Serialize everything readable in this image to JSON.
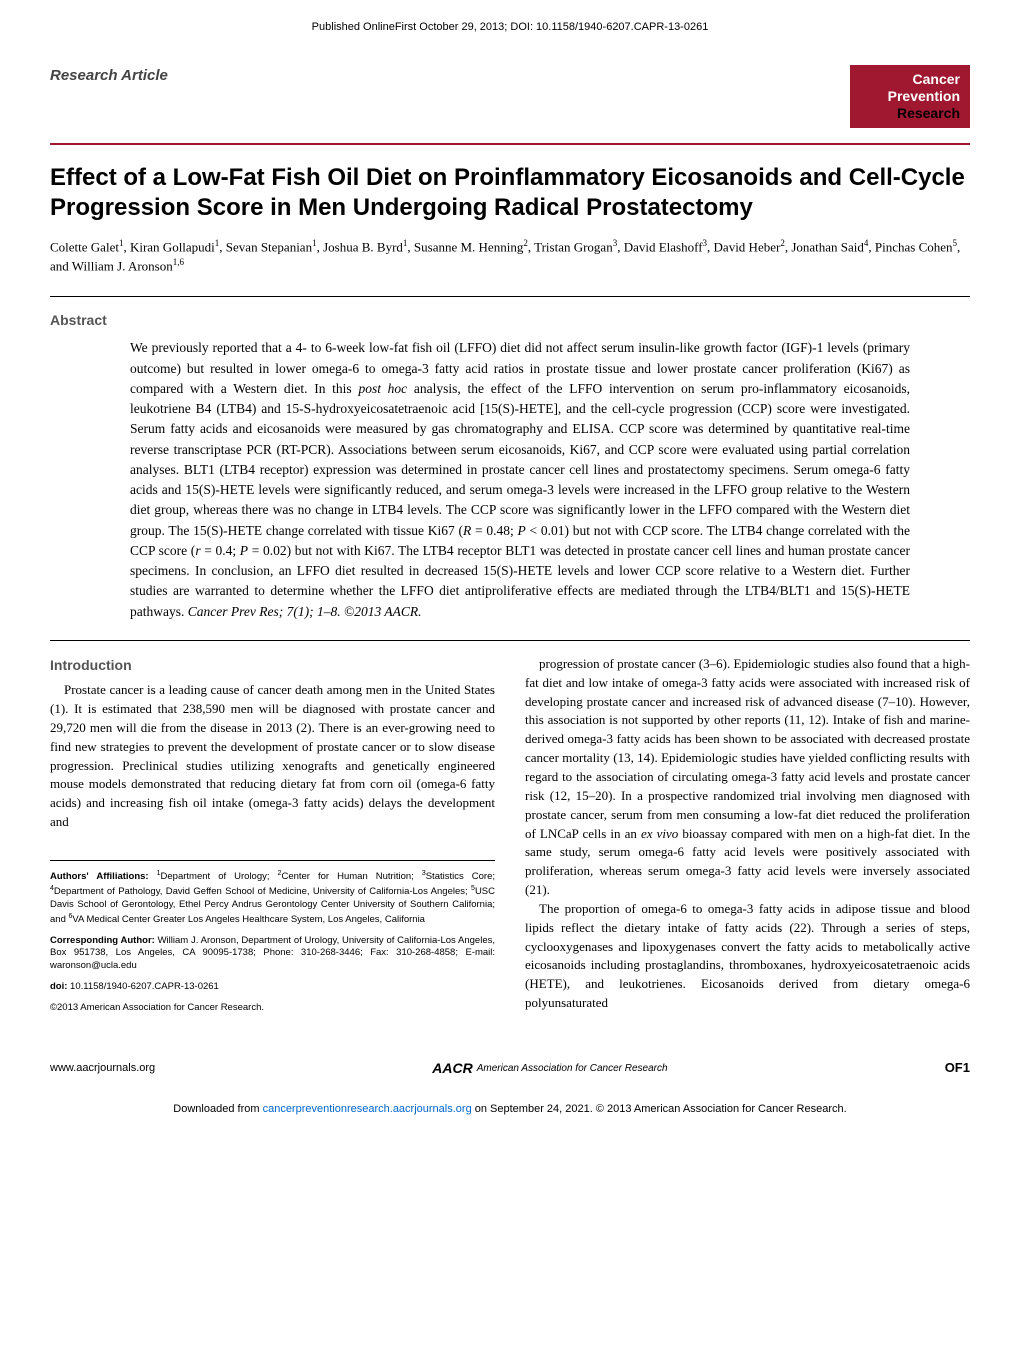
{
  "header": {
    "published_line": "Published OnlineFirst October 29, 2013; DOI: 10.1158/1940-6207.CAPR-13-0261"
  },
  "article_type": "Research Article",
  "journal_badge": {
    "line1a": "Cancer",
    "line1b": "Prevention",
    "line2": "Research",
    "bg_color": "#a01830"
  },
  "title": "Effect of a Low-Fat Fish Oil Diet on Proinflammatory Eicosanoids and Cell-Cycle Progression Score in Men Undergoing Radical Prostatectomy",
  "authors_html": "Colette Galet<sup>1</sup>, Kiran Gollapudi<sup>1</sup>, Sevan Stepanian<sup>1</sup>, Joshua B. Byrd<sup>1</sup>, Susanne M. Henning<sup>2</sup>, Tristan Grogan<sup>3</sup>, David Elashoff<sup>3</sup>, David Heber<sup>2</sup>, Jonathan Said<sup>4</sup>, Pinchas Cohen<sup>5</sup>, and William J. Aronson<sup>1,6</sup>",
  "abstract": {
    "heading": "Abstract",
    "body": "We previously reported that a 4- to 6-week low-fat fish oil (LFFO) diet did not affect serum insulin-like growth factor (IGF)-1 levels (primary outcome) but resulted in lower omega-6 to omega-3 fatty acid ratios in prostate tissue and lower prostate cancer proliferation (Ki67) as compared with a Western diet. In this <span class=\"italic-inline\">post hoc</span> analysis, the effect of the LFFO intervention on serum pro-inflammatory eicosanoids, leukotriene B4 (LTB4) and 15-S-hydroxyeicosatetraenoic acid [15(S)-HETE], and the cell-cycle progression (CCP) score were investigated. Serum fatty acids and eicosanoids were measured by gas chromatography and ELISA. CCP score was determined by quantitative real-time reverse transcriptase PCR (RT-PCR). Associations between serum eicosanoids, Ki67, and CCP score were evaluated using partial correlation analyses. BLT1 (LTB4 receptor) expression was determined in prostate cancer cell lines and prostatectomy specimens. Serum omega-6 fatty acids and 15(S)-HETE levels were significantly reduced, and serum omega-3 levels were increased in the LFFO group relative to the Western diet group, whereas there was no change in LTB4 levels. The CCP score was significantly lower in the LFFO compared with the Western diet group. The 15(S)-HETE change correlated with tissue Ki67 (<span class=\"italic-inline\">R</span> = 0.48; <span class=\"italic-inline\">P</span> < 0.01) but not with CCP score. The LTB4 change correlated with the CCP score (<span class=\"italic-inline\">r</span> = 0.4; <span class=\"italic-inline\">P</span> = 0.02) but not with Ki67. The LTB4 receptor BLT1 was detected in prostate cancer cell lines and human prostate cancer specimens. In conclusion, an LFFO diet resulted in decreased 15(S)-HETE levels and lower CCP score relative to a Western diet. Further studies are warranted to determine whether the LFFO diet antiproliferative effects are mediated through the LTB4/BLT1 and 15(S)-HETE pathways. <span class=\"italic-inline\">Cancer Prev Res; 7(1); 1–8. ©2013 AACR.</span>"
  },
  "introduction": {
    "heading": "Introduction",
    "left_para": "Prostate cancer is a leading cause of cancer death among men in the United States (1). It is estimated that 238,590 men will be diagnosed with prostate cancer and 29,720 men will die from the disease in 2013 (2). There is an ever-growing need to find new strategies to prevent the development of prostate cancer or to slow disease progression. Preclinical studies utilizing xenografts and genetically engineered mouse models demonstrated that reducing dietary fat from corn oil (omega-6 fatty acids) and increasing fish oil intake (omega-3 fatty acids) delays the development and",
    "right_para1": "progression of prostate cancer (3–6). Epidemiologic studies also found that a high-fat diet and low intake of omega-3 fatty acids were associated with increased risk of developing prostate cancer and increased risk of advanced disease (7–10). However, this association is not supported by other reports (11, 12). Intake of fish and marine-derived omega-3 fatty acids has been shown to be associated with decreased prostate cancer mortality (13, 14). Epidemiologic studies have yielded conflicting results with regard to the association of circulating omega-3 fatty acid levels and prostate cancer risk (12, 15–20). In a prospective randomized trial involving men diagnosed with prostate cancer, serum from men consuming a low-fat diet reduced the proliferation of LNCaP cells in an <span class=\"italic-inline\">ex vivo</span> bioassay compared with men on a high-fat diet. In the same study, serum omega-6 fatty acid levels were positively associated with proliferation, whereas serum omega-3 fatty acid levels were inversely associated (21).",
    "right_para2": "The proportion of omega-6 to omega-3 fatty acids in adipose tissue and blood lipids reflect the dietary intake of fatty acids (22). Through a series of steps, cyclooxygenases and lipoxygenases convert the fatty acids to metabolically active eicosanoids including prostaglandins, thromboxanes, hydroxyeicosatetraenoic acids (HETE), and leukotrienes. Eicosanoids derived from dietary omega-6 polyunsaturated"
  },
  "affiliations": {
    "authors_affil": "<b>Authors' Affiliations:</b> <sup>1</sup>Department of Urology; <sup>2</sup>Center for Human Nutrition; <sup>3</sup>Statistics Core; <sup>4</sup>Department of Pathology, David Geffen School of Medicine, University of California-Los Angeles; <sup>5</sup>USC Davis School of Gerontology, Ethel Percy Andrus Gerontology Center University of Southern California; and <sup>6</sup>VA Medical Center Greater Los Angeles Healthcare System, Los Angeles, California",
    "corresponding": "<b>Corresponding Author:</b> William J. Aronson, Department of Urology, University of California-Los Angeles, Box 951738, Los Angeles, CA 90095-1738; Phone: 310-268-3446; Fax: 310-268-4858; E-mail: waronson@ucla.edu",
    "doi": "<b>doi:</b> 10.1158/1940-6207.CAPR-13-0261",
    "copyright": "©2013 American Association for Cancer Research."
  },
  "footer": {
    "left": "www.aacrjournals.org",
    "center_logo_text": "American Association for Cancer Research",
    "center_mark": "AACR",
    "right": "OF1",
    "download": "Downloaded from <a href=\"#\">cancerpreventionresearch.aacrjournals.org</a> on September 24, 2021. © 2013 American Association for Cancer Research."
  },
  "colors": {
    "accent": "#a01830",
    "link": "#0066cc",
    "heading_gray": "#555555"
  }
}
